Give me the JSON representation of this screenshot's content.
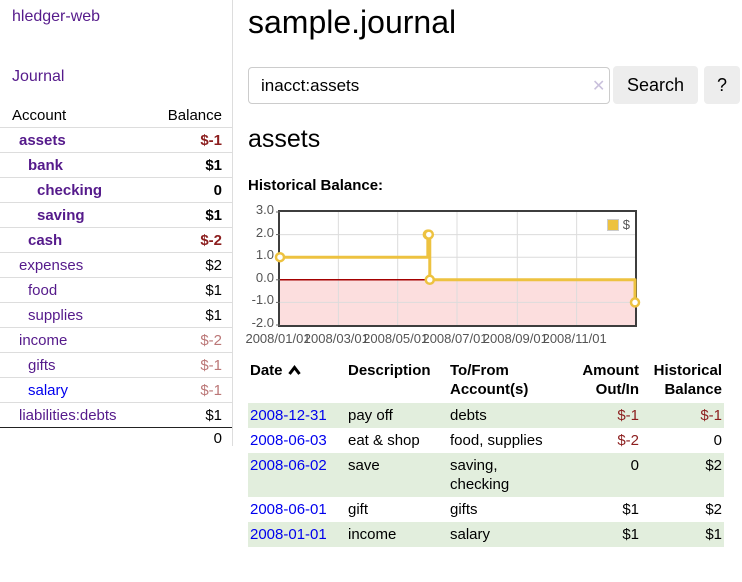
{
  "app": {
    "title": "hledger-web"
  },
  "colors": {
    "accent_purple": "#551a8b",
    "link_blue": "#0000ee",
    "negative_strong": "#8c1e1e",
    "negative_muted": "#bb7777",
    "row_green": "#e2eedd",
    "series_gold": "#edc240",
    "negative_region_pink": "#fcdede",
    "zero_line_red": "#a40000",
    "grid_gray": "#dcdcdc",
    "chart_border": "#3d3d3d"
  },
  "sidebar": {
    "nav": {
      "journal": "Journal"
    },
    "accounts": {
      "headers": {
        "account": "Account",
        "balance": "Balance"
      },
      "rows": [
        {
          "name": "assets",
          "balance": "$-1",
          "level": 1,
          "bold": true,
          "balance_class": "neg"
        },
        {
          "name": "bank",
          "balance": "$1",
          "level": 2,
          "bold": true,
          "balance_class": ""
        },
        {
          "name": "checking",
          "balance": "0",
          "level": 3,
          "bold": true,
          "balance_class": ""
        },
        {
          "name": "saving",
          "balance": "$1",
          "level": 3,
          "bold": true,
          "balance_class": ""
        },
        {
          "name": "cash",
          "balance": "$-2",
          "level": 2,
          "bold": true,
          "balance_class": "neg"
        },
        {
          "name": "expenses",
          "balance": "$2",
          "level": 1,
          "bold": false,
          "balance_class": ""
        },
        {
          "name": "food",
          "balance": "$1",
          "level": 2,
          "bold": false,
          "balance_class": ""
        },
        {
          "name": "supplies",
          "balance": "$1",
          "level": 2,
          "bold": false,
          "balance_class": ""
        },
        {
          "name": "income",
          "balance": "$-2",
          "level": 1,
          "bold": false,
          "balance_class": "neg-muted"
        },
        {
          "name": "gifts",
          "balance": "$-1",
          "level": 2,
          "bold": false,
          "balance_class": "neg-muted"
        },
        {
          "name": "salary",
          "balance": "$-1",
          "level": 2,
          "bold": false,
          "balance_class": "neg-muted",
          "link_color": "blue"
        },
        {
          "name": "liabilities:debts",
          "balance": "$1",
          "level": 1,
          "bold": false,
          "balance_class": ""
        }
      ],
      "total": "0"
    }
  },
  "main": {
    "title": "sample.journal",
    "search": {
      "value": "inacct:assets",
      "clear_icon": "✕",
      "button": "Search",
      "help_button": "?"
    },
    "account_heading": "assets",
    "chart_label": "Historical Balance:"
  },
  "chart_data": {
    "type": "line",
    "step": true,
    "title": "Historical Balance",
    "x_range": [
      "2008-01-01",
      "2008-12-31"
    ],
    "y_range": [
      -2,
      3
    ],
    "y_ticks": [
      {
        "label": "3.0",
        "value": 3
      },
      {
        "label": "2.0",
        "value": 2
      },
      {
        "label": "1.0",
        "value": 1
      },
      {
        "label": "0.0",
        "value": 0
      },
      {
        "label": "-1.0",
        "value": -1
      },
      {
        "label": "-2.0",
        "value": -2
      }
    ],
    "x_ticks": [
      {
        "label": "2008/01/01",
        "date": "2008-01-01"
      },
      {
        "label": "2008/03/01",
        "date": "2008-03-01"
      },
      {
        "label": "2008/05/01",
        "date": "2008-05-01"
      },
      {
        "label": "2008/07/01",
        "date": "2008-07-01"
      },
      {
        "label": "2008/09/01",
        "date": "2008-09-01"
      },
      {
        "label": "2008/11/01",
        "date": "2008-11-01"
      }
    ],
    "legend": {
      "label": "$",
      "position": "top-right"
    },
    "grid": true,
    "series": [
      {
        "name": "$",
        "color": "#edc240",
        "points": [
          {
            "date": "2008-01-01",
            "value": 1
          },
          {
            "date": "2008-06-01",
            "value": 2
          },
          {
            "date": "2008-06-02",
            "value": 2
          },
          {
            "date": "2008-06-03",
            "value": 0
          },
          {
            "date": "2008-12-31",
            "value": -1
          }
        ]
      }
    ]
  },
  "register": {
    "headers": {
      "date": "Date",
      "description": "Description",
      "accounts": "To/From Account(s)",
      "amount": "Amount Out/In",
      "balance": "Historical Balance"
    },
    "rows": [
      {
        "date": "2008-12-31",
        "description": "pay off",
        "accounts": "debts",
        "amount": "$-1",
        "amount_neg": true,
        "balance": "$-1",
        "balance_neg": true
      },
      {
        "date": "2008-06-03",
        "description": "eat & shop",
        "accounts": "food, supplies",
        "amount": "$-2",
        "amount_neg": true,
        "balance": "0",
        "balance_neg": false
      },
      {
        "date": "2008-06-02",
        "description": "save",
        "accounts": "saving, checking",
        "amount": "0",
        "amount_neg": false,
        "balance": "$2",
        "balance_neg": false
      },
      {
        "date": "2008-06-01",
        "description": "gift",
        "accounts": "gifts",
        "amount": "$1",
        "amount_neg": false,
        "balance": "$2",
        "balance_neg": false
      },
      {
        "date": "2008-01-01",
        "description": "income",
        "accounts": "salary",
        "amount": "$1",
        "amount_neg": false,
        "balance": "$1",
        "balance_neg": false
      }
    ]
  }
}
